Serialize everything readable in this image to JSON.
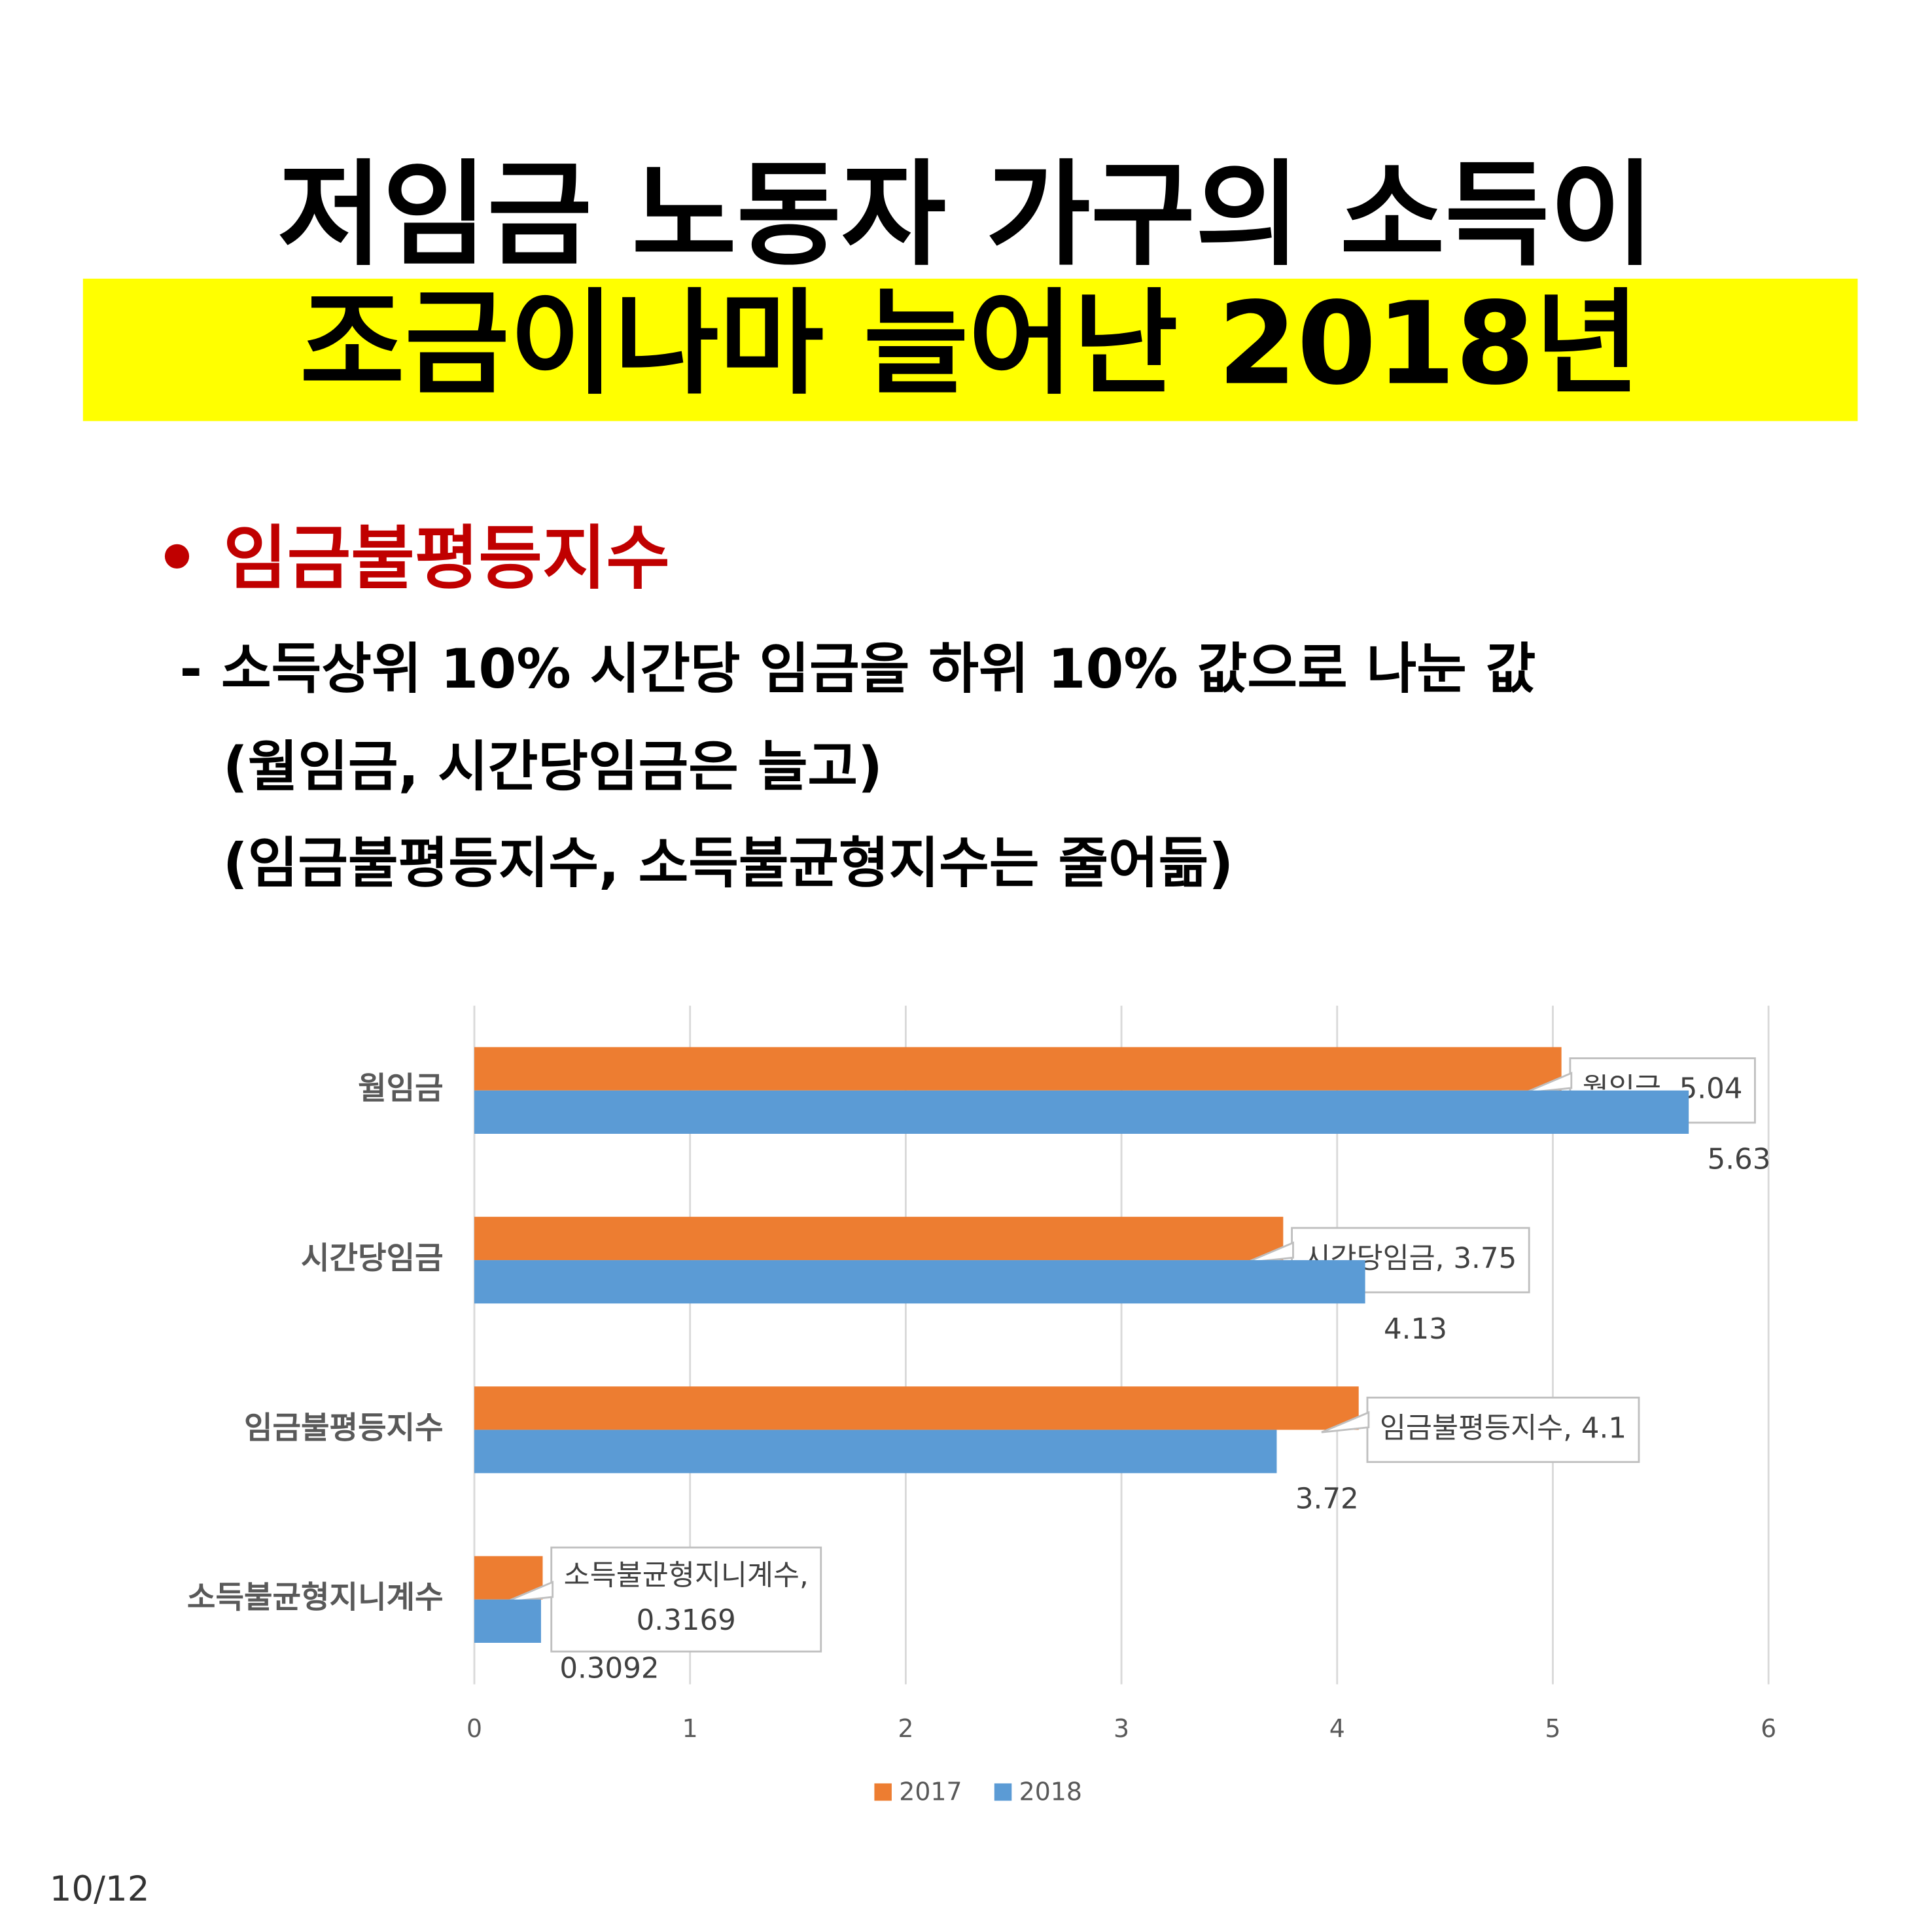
{
  "header": {
    "title_line1": "저임금 노동자 가구의 소득이",
    "title_line2": "조금이나마 늘어난 2018년",
    "bullet": "• 임금불평등지수",
    "lines": [
      "- 소득상위 10% 시간당 임금을 하위 10% 값으로 나눈 값",
      "(월임금, 시간당임금은 늘고)",
      "(임금불평등지수, 소득불균형지수는 줄어듦)"
    ]
  },
  "page_number": "10/12",
  "chart_data": {
    "type": "hbar",
    "categories": [
      "월임금",
      "시간당임금",
      "임금불평등지수",
      "소득불균형지니계수"
    ],
    "series": [
      {
        "name": "2017",
        "color": "#ed7d31",
        "values": [
          5.04,
          3.75,
          4.1,
          0.3169
        ],
        "value_labels": [
          "월임금, 5.04",
          "시간당임금, 3.75",
          "임금불평등지수, 4.1",
          "소득불균형지니계수, 0.3169"
        ]
      },
      {
        "name": "2018",
        "color": "#5b9bd5",
        "values": [
          5.63,
          4.13,
          3.72,
          0.3092
        ]
      }
    ],
    "xlim": [
      0,
      6
    ],
    "xticks": [
      0,
      1,
      2,
      3,
      4,
      5,
      6
    ],
    "grid": true,
    "legend": "bottom"
  }
}
